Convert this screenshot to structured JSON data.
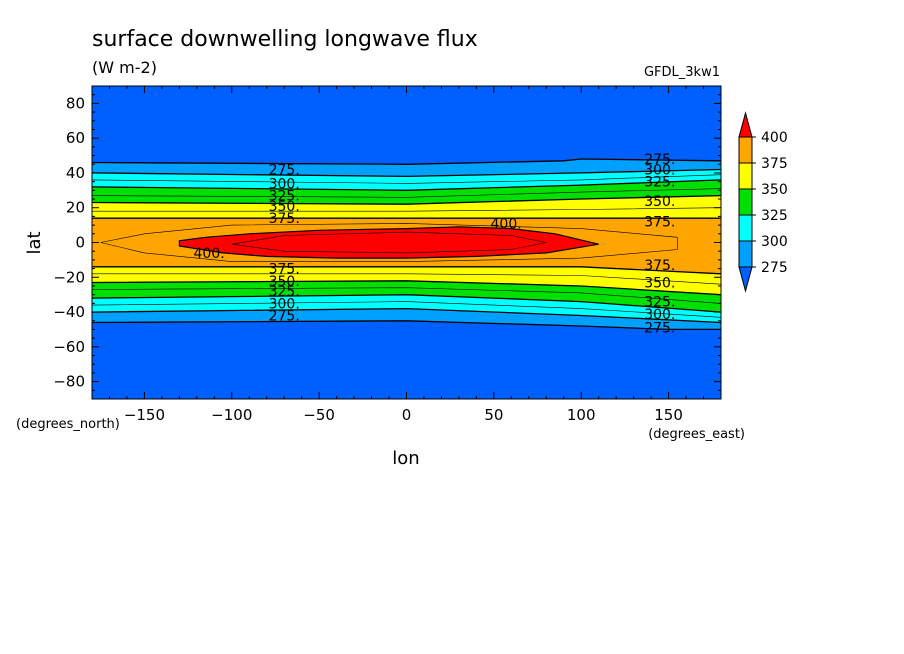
{
  "chart_data": {
    "type": "contour",
    "title": "surface downwelling longwave flux",
    "units": "(W m-2)",
    "dataset": "GFDL_3kw1",
    "xlabel": "lon",
    "ylabel": "lat",
    "x_units": "(degrees_east)",
    "y_units": "(degrees_north)",
    "xlim": [
      -180,
      180
    ],
    "ylim": [
      -90,
      90
    ],
    "x_ticks": [
      -150,
      -100,
      -50,
      0,
      50,
      100,
      150
    ],
    "y_ticks": [
      80,
      60,
      40,
      20,
      0,
      -20,
      -40,
      -60,
      -80
    ],
    "colorbar": {
      "labels": [
        "400",
        "375",
        "350",
        "325",
        "300",
        "275"
      ],
      "colors": [
        "#ff0000",
        "#ffa500",
        "#ffff00",
        "#00e000",
        "#00ffff",
        "#00a0ff",
        "#0060ff"
      ]
    },
    "colors": {
      "below_275": "#0060ff",
      "c275": "#00a0ff",
      "c300": "#00ffff",
      "c325": "#00e000",
      "c350": "#ffff00",
      "c375": "#ffa500",
      "c400": "#ff0000"
    },
    "contour_levels": [
      275,
      300,
      325,
      350,
      375,
      400
    ],
    "bands": [
      {
        "level": 275,
        "north": [
          [
            -180,
            46
          ],
          [
            0,
            45
          ],
          [
            90,
            47
          ],
          [
            100,
            48
          ],
          [
            180,
            47
          ]
        ],
        "south": [
          [
            -180,
            -46
          ],
          [
            0,
            -45
          ],
          [
            100,
            -48
          ],
          [
            150,
            -50
          ],
          [
            180,
            -50
          ]
        ]
      },
      {
        "level": 300,
        "north": [
          [
            -180,
            40
          ],
          [
            0,
            38
          ],
          [
            100,
            40
          ],
          [
            180,
            42
          ]
        ],
        "south": [
          [
            -180,
            -40
          ],
          [
            0,
            -38
          ],
          [
            100,
            -42
          ],
          [
            180,
            -46
          ]
        ]
      },
      {
        "level": 325,
        "north": [
          [
            -180,
            32
          ],
          [
            0,
            30
          ],
          [
            100,
            33
          ],
          [
            180,
            36
          ]
        ],
        "south": [
          [
            -180,
            -32
          ],
          [
            0,
            -30
          ],
          [
            100,
            -34
          ],
          [
            180,
            -40
          ]
        ]
      },
      {
        "level": 350,
        "north": [
          [
            -180,
            23
          ],
          [
            0,
            22
          ],
          [
            100,
            25
          ],
          [
            180,
            27
          ]
        ],
        "south": [
          [
            -180,
            -23
          ],
          [
            0,
            -22
          ],
          [
            100,
            -25
          ],
          [
            180,
            -30
          ]
        ]
      },
      {
        "level": 375,
        "north": [
          [
            -180,
            14
          ],
          [
            0,
            14
          ],
          [
            100,
            14
          ],
          [
            180,
            14
          ]
        ],
        "south": [
          [
            -180,
            -14
          ],
          [
            0,
            -14
          ],
          [
            100,
            -14
          ],
          [
            180,
            -18
          ]
        ]
      }
    ],
    "core_400": [
      [
        -130,
        -2
      ],
      [
        -105,
        -6
      ],
      [
        -80,
        -8
      ],
      [
        -40,
        -9
      ],
      [
        0,
        -9
      ],
      [
        40,
        -8
      ],
      [
        80,
        -6
      ],
      [
        110,
        -1
      ],
      [
        85,
        5
      ],
      [
        60,
        8
      ],
      [
        30,
        9
      ],
      [
        0,
        8
      ],
      [
        -50,
        7
      ],
      [
        -90,
        5
      ],
      [
        -115,
        3
      ],
      [
        -130,
        1
      ]
    ],
    "contour_labels": [
      {
        "text": "275.",
        "lon": -70,
        "lat": 42
      },
      {
        "text": "300.",
        "lon": -70,
        "lat": 34
      },
      {
        "text": "325.",
        "lon": -70,
        "lat": 27
      },
      {
        "text": "350.",
        "lon": -70,
        "lat": 21
      },
      {
        "text": "375.",
        "lon": -70,
        "lat": 14
      },
      {
        "text": "400.",
        "lon": -113,
        "lat": -6
      },
      {
        "text": "400.",
        "lon": 57,
        "lat": 11
      },
      {
        "text": "275.",
        "lon": 145,
        "lat": 48
      },
      {
        "text": "300.",
        "lon": 145,
        "lat": 42
      },
      {
        "text": "325.",
        "lon": 145,
        "lat": 35
      },
      {
        "text": "350.",
        "lon": 145,
        "lat": 24
      },
      {
        "text": "375.",
        "lon": 145,
        "lat": 12
      },
      {
        "text": "375.",
        "lon": -70,
        "lat": -15
      },
      {
        "text": "350.",
        "lon": -70,
        "lat": -22
      },
      {
        "text": "325.",
        "lon": -70,
        "lat": -28
      },
      {
        "text": "300.",
        "lon": -70,
        "lat": -35
      },
      {
        "text": "275.",
        "lon": -70,
        "lat": -42
      },
      {
        "text": "375.",
        "lon": 145,
        "lat": -13
      },
      {
        "text": "350.",
        "lon": 145,
        "lat": -23
      },
      {
        "text": "325.",
        "lon": 145,
        "lat": -34
      },
      {
        "text": "300.",
        "lon": 145,
        "lat": -41
      },
      {
        "text": "275.",
        "lon": 145,
        "lat": -49
      }
    ]
  }
}
